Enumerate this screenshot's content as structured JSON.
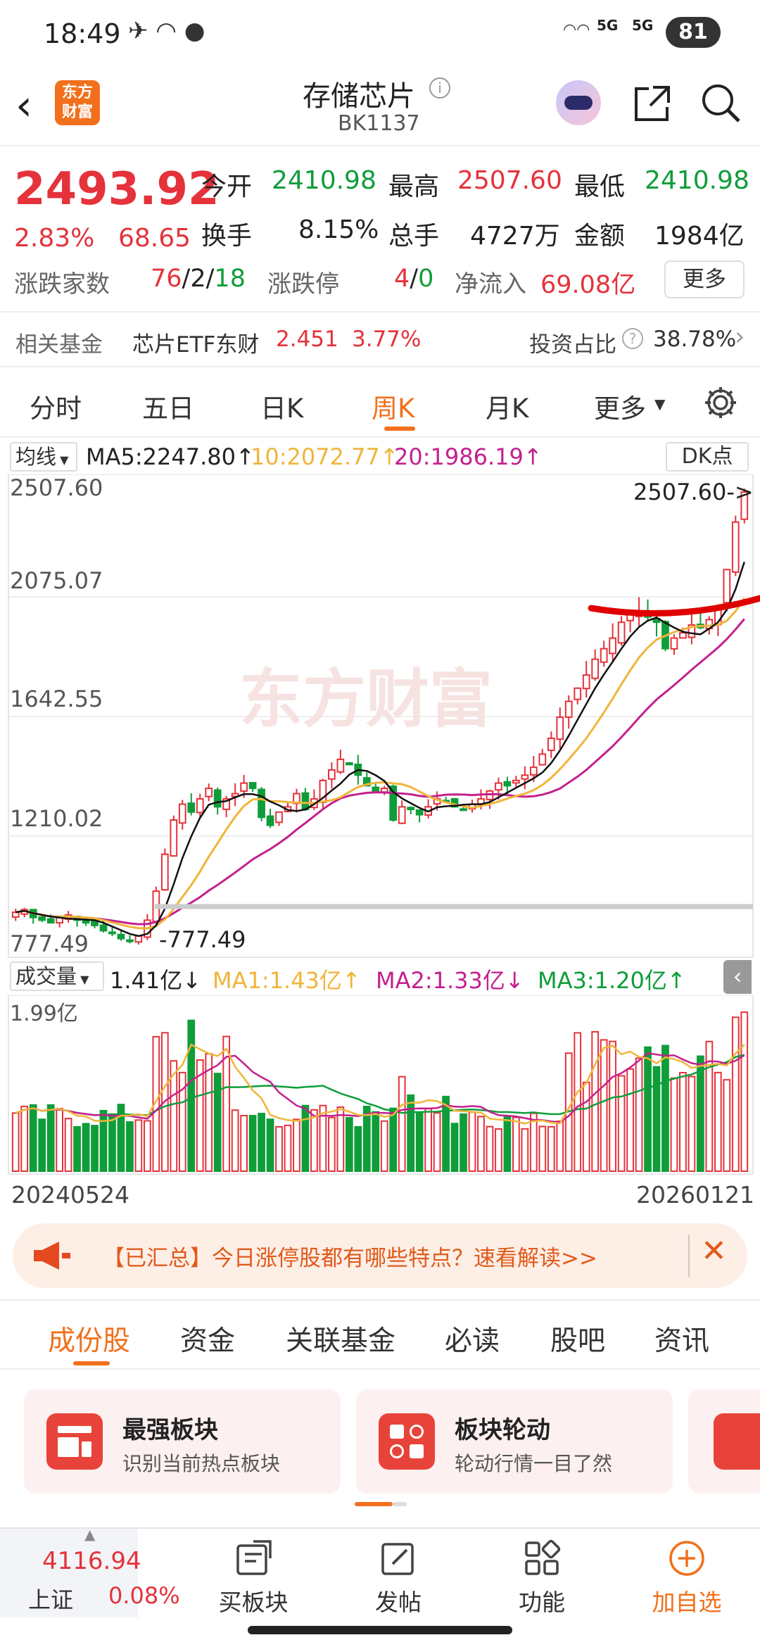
{
  "status": {
    "time": "18:49",
    "battery": "81",
    "sig1": "5G",
    "sig2": "5G"
  },
  "header": {
    "app_logo": "东方\n财富",
    "title": "存储芯片",
    "code": "BK1137"
  },
  "quote": {
    "price": "2493.92",
    "pct": "2.83%",
    "chg": "68.65",
    "open_label": "今开",
    "open": "2410.98",
    "high_label": "最高",
    "high": "2507.60",
    "low_label": "最低",
    "low": "2410.98",
    "turn_label": "换手",
    "turn": "8.15%",
    "vol_label": "总手",
    "vol": "4727万",
    "amt_label": "金额",
    "amt": "1984亿",
    "updown_label": "涨跌家数",
    "up": "76",
    "flat": "2",
    "down": "18",
    "limit_label": "涨跌停",
    "limit_up": "4",
    "limit_down": "0",
    "inflow_label": "净流入",
    "inflow": "69.08亿",
    "more": "更多"
  },
  "fund": {
    "label": "相关基金",
    "name": "芯片ETF东财",
    "price": "2.451",
    "pct": "3.77%",
    "ratio_label": "投资占比",
    "ratio": "38.78%"
  },
  "tabs": [
    "分时",
    "五日",
    "日K",
    "周K",
    "月K",
    "更多"
  ],
  "active_tab": "周K",
  "ma_legend": {
    "type": "均线",
    "ma5": "MA5:2247.80",
    "ma10": "10:2072.77",
    "ma20": "20:1986.19",
    "dk": "DK点"
  },
  "kline": {
    "y_labels": [
      "2507.60",
      "2075.07",
      "1642.55",
      "1210.02",
      "777.49"
    ],
    "max_tag": "2507.60->",
    "min_tag": "777.49",
    "watermark": "东方财富"
  },
  "vol_legend": {
    "type": "成交量",
    "vol": "1.41亿",
    "ma1": "MA1:1.43亿",
    "ma2": "MA2:1.33亿",
    "ma3": "MA3:1.20亿",
    "max": "1.99亿"
  },
  "dates": {
    "start": "20240524",
    "end": "20260121"
  },
  "notice": {
    "text": "【已汇总】今日涨停股都有哪些特点？速看解读>>"
  },
  "subtabs": [
    "成份股",
    "资金",
    "关联基金",
    "必读",
    "股吧",
    "资讯"
  ],
  "cards": [
    {
      "title": "最强板块",
      "desc": "识别当前热点板块"
    },
    {
      "title": "板块轮动",
      "desc": "轮动行情一目了然"
    }
  ],
  "bottom": {
    "index_val": "4116.94",
    "index_name": "上证",
    "index_pct": "0.08%",
    "buy": "买板块",
    "post": "发帖",
    "func": "功能",
    "add": "加自选"
  },
  "colors": {
    "up": "#e5323b",
    "down": "#0f9d3a",
    "accent": "#f2701c",
    "ma5": "#111111",
    "ma10": "#f0b53a",
    "ma20": "#c4208e"
  },
  "chart_data": {
    "type": "candlestick",
    "period": "weekly",
    "x_range": [
      "20240524",
      "20260121"
    ],
    "ylim": [
      777.49,
      2507.6
    ],
    "close_approx": [
      900,
      910,
      880,
      870,
      860,
      880,
      890,
      870,
      860,
      850,
      830,
      820,
      800,
      790,
      810,
      870,
      980,
      1120,
      1250,
      1310,
      1280,
      1330,
      1370,
      1300,
      1330,
      1350,
      1390,
      1370,
      1260,
      1230,
      1280,
      1300,
      1350,
      1290,
      1330,
      1400,
      1440,
      1480,
      1460,
      1420,
      1380,
      1360,
      1370,
      1250,
      1300,
      1290,
      1270,
      1300,
      1330,
      1320,
      1300,
      1290,
      1310,
      1330,
      1360,
      1390,
      1380,
      1400,
      1420,
      1450,
      1500,
      1560,
      1640,
      1700,
      1750,
      1800,
      1860,
      1900,
      1940,
      2000,
      2030,
      2040,
      2020,
      2000,
      1900,
      1940,
      1960,
      1990,
      1980,
      2010,
      2060,
      2200,
      2380,
      2493.92
    ],
    "volume_max": "1.99亿"
  }
}
